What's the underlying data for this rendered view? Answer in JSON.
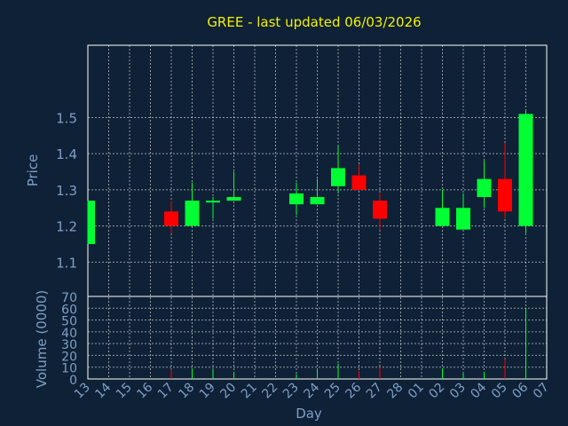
{
  "chart_data": {
    "type": "candlestick",
    "title": "GREE - last updated 06/03/2026",
    "xlabel": "Day",
    "ylabel": "Price",
    "volume_ylabel": "Volume (0000)",
    "x_ticks": [
      "13",
      "14",
      "15",
      "16",
      "17",
      "18",
      "19",
      "20",
      "21",
      "22",
      "23",
      "24",
      "25",
      "26",
      "27",
      "28",
      "01",
      "02",
      "03",
      "04",
      "05",
      "06",
      "07"
    ],
    "price_ticks": [
      1.1,
      1.2,
      1.3,
      1.4,
      1.5
    ],
    "price_ylim": [
      1.005,
      1.7
    ],
    "volume_ticks": [
      0,
      10,
      20,
      30,
      40,
      50,
      60,
      70
    ],
    "volume_ylim": [
      0,
      70
    ],
    "grid": true,
    "colors": {
      "background": "#0f2136",
      "up": "#00ff33",
      "down": "#ff0000",
      "grid": "#ffffff",
      "axis": "#ffffff",
      "tick_text": "#7f9fc9",
      "title": "#f2f200"
    },
    "candles": [
      {
        "x": "13",
        "open": 1.15,
        "high": 1.27,
        "low": 1.15,
        "close": 1.27,
        "volume": 0
      },
      {
        "x": "17",
        "open": 1.24,
        "high": 1.27,
        "low": 1.18,
        "close": 1.2,
        "volume": 8
      },
      {
        "x": "18",
        "open": 1.2,
        "high": 1.32,
        "low": 1.2,
        "close": 1.27,
        "volume": 9
      },
      {
        "x": "19",
        "open": 1.265,
        "high": 1.28,
        "low": 1.22,
        "close": 1.27,
        "volume": 8
      },
      {
        "x": "20",
        "open": 1.27,
        "high": 1.35,
        "low": 1.27,
        "close": 1.28,
        "volume": 6
      },
      {
        "x": "23",
        "open": 1.26,
        "high": 1.32,
        "low": 1.23,
        "close": 1.29,
        "volume": 4
      },
      {
        "x": "24",
        "open": 1.26,
        "high": 1.33,
        "low": 1.26,
        "close": 1.28,
        "volume": 8
      },
      {
        "x": "25",
        "open": 1.31,
        "high": 1.42,
        "low": 1.29,
        "close": 1.36,
        "volume": 13
      },
      {
        "x": "26",
        "open": 1.34,
        "high": 1.37,
        "low": 1.3,
        "close": 1.3,
        "volume": 7
      },
      {
        "x": "27",
        "open": 1.27,
        "high": 1.29,
        "low": 1.19,
        "close": 1.22,
        "volume": 10
      },
      {
        "x": "02",
        "open": 1.2,
        "high": 1.3,
        "low": 1.2,
        "close": 1.25,
        "volume": 9
      },
      {
        "x": "03",
        "open": 1.19,
        "high": 1.29,
        "low": 1.19,
        "close": 1.25,
        "volume": 5
      },
      {
        "x": "04",
        "open": 1.28,
        "high": 1.38,
        "low": 1.25,
        "close": 1.33,
        "volume": 6
      },
      {
        "x": "05",
        "open": 1.33,
        "high": 1.43,
        "low": 1.22,
        "close": 1.24,
        "volume": 17
      },
      {
        "x": "06",
        "open": 1.2,
        "high": 1.52,
        "low": 1.18,
        "close": 1.51,
        "volume": 60
      }
    ]
  }
}
